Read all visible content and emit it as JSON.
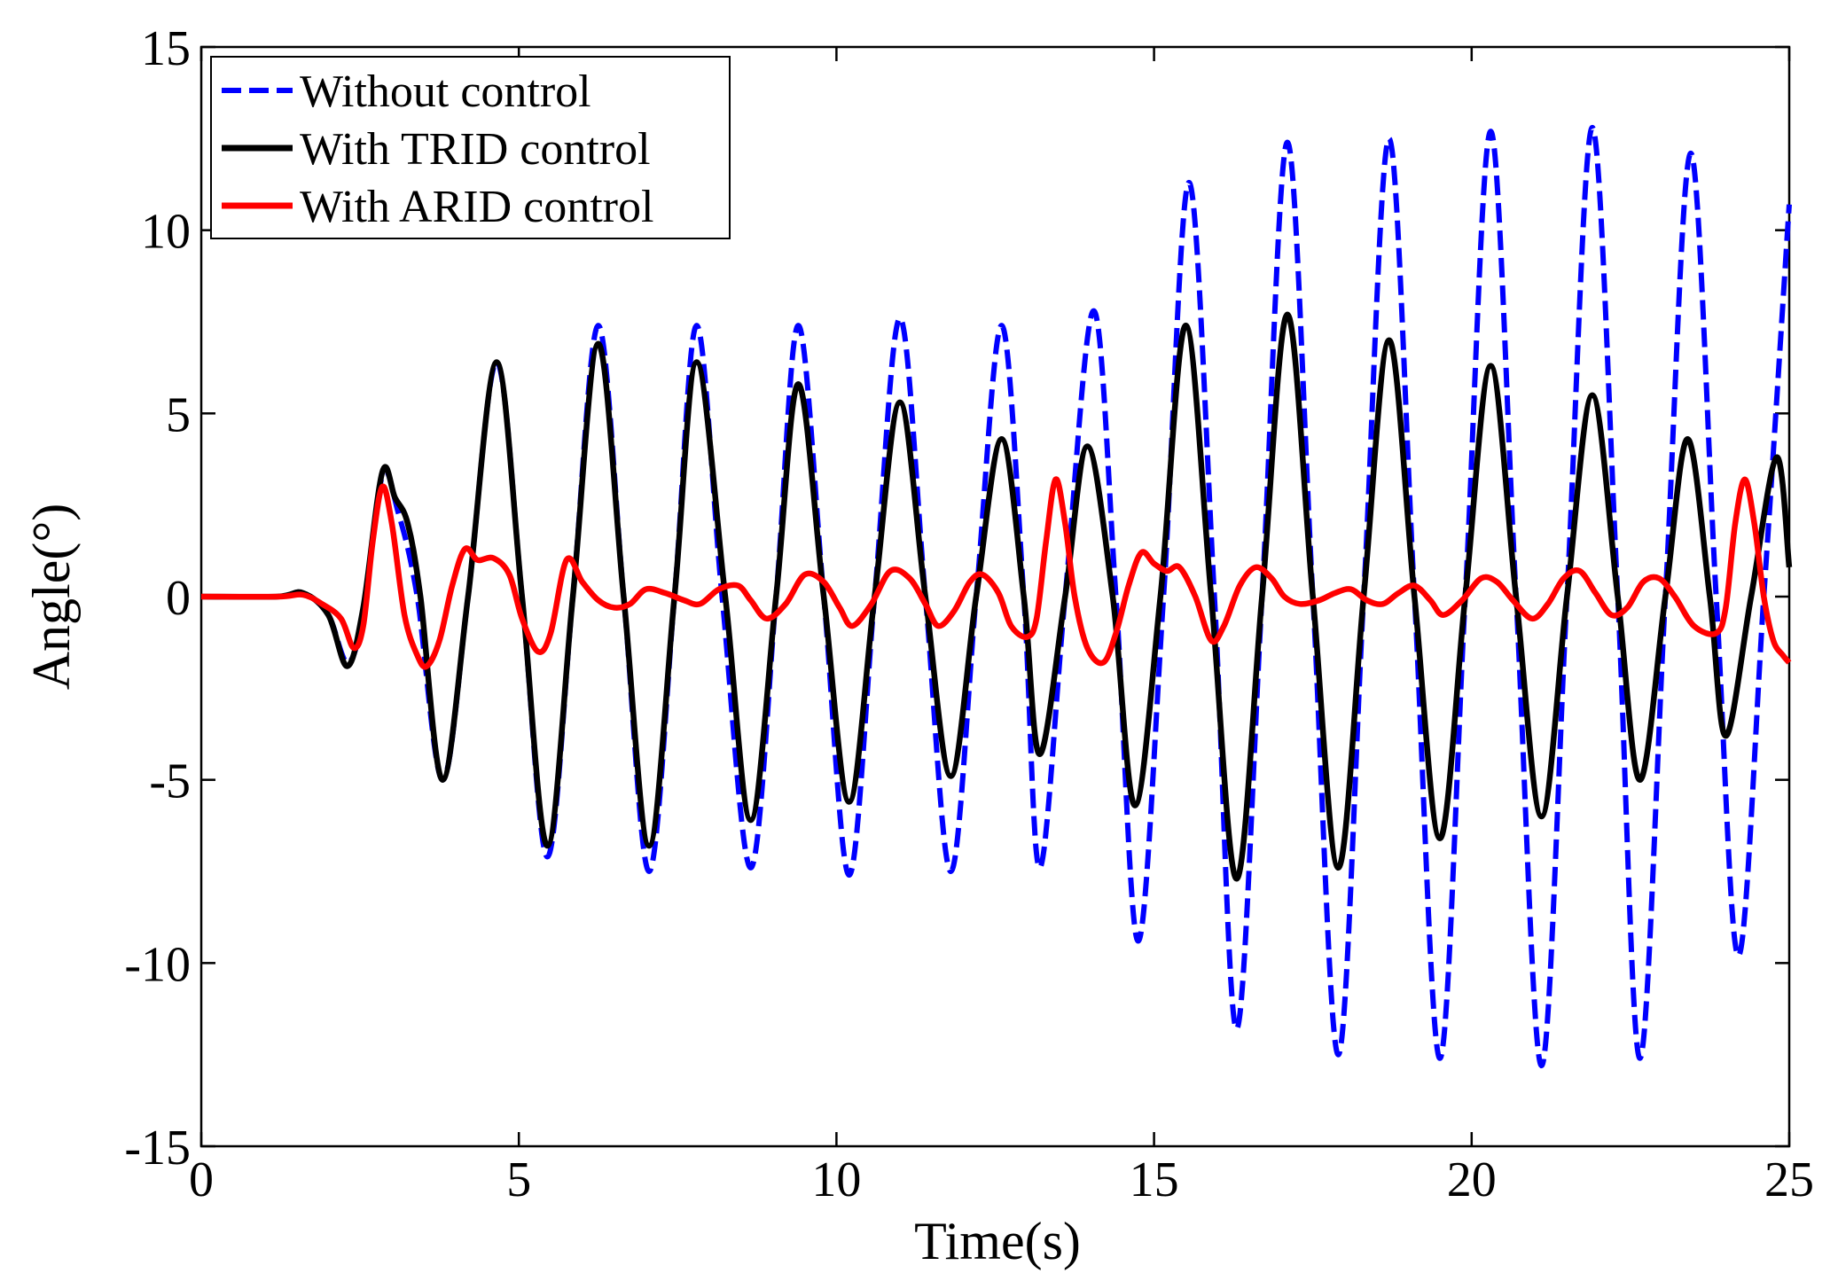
{
  "chart_data": {
    "type": "line",
    "title": "",
    "xlabel": "Time(s)",
    "ylabel": "Angle(°)",
    "xlim": [
      0,
      25
    ],
    "ylim": [
      -15,
      15
    ],
    "xticks": [
      0,
      5,
      10,
      15,
      20,
      25
    ],
    "yticks": [
      -15,
      -10,
      -5,
      0,
      5,
      10,
      15
    ],
    "xtick_labels": [
      "0",
      "5",
      "10",
      "15",
      "20",
      "25"
    ],
    "ytick_labels": [
      "-15",
      "-10",
      "-5",
      "0",
      "5",
      "10",
      "15"
    ],
    "grid": false,
    "legend_position": "top-left",
    "series": [
      {
        "name": "Without control",
        "color": "#0000ff",
        "style": "dashed",
        "points": [
          [
            0,
            0
          ],
          [
            1.2,
            0
          ],
          [
            1.6,
            0.1
          ],
          [
            2.0,
            -0.5
          ],
          [
            2.3,
            -1.8
          ],
          [
            2.55,
            -0.5
          ],
          [
            2.85,
            3.3
          ],
          [
            3.1,
            2.3
          ],
          [
            3.4,
            0
          ],
          [
            3.8,
            -5.0
          ],
          [
            4.2,
            0
          ],
          [
            4.65,
            6.4
          ],
          [
            5.05,
            0
          ],
          [
            5.45,
            -7.1
          ],
          [
            5.85,
            0
          ],
          [
            6.25,
            7.4
          ],
          [
            6.65,
            0
          ],
          [
            7.05,
            -7.5
          ],
          [
            7.45,
            0
          ],
          [
            7.8,
            7.4
          ],
          [
            8.2,
            0
          ],
          [
            8.65,
            -7.4
          ],
          [
            9.05,
            0
          ],
          [
            9.4,
            7.4
          ],
          [
            9.8,
            0
          ],
          [
            10.2,
            -7.6
          ],
          [
            10.6,
            0
          ],
          [
            11.0,
            7.6
          ],
          [
            11.4,
            0
          ],
          [
            11.8,
            -7.5
          ],
          [
            12.2,
            0
          ],
          [
            12.6,
            7.4
          ],
          [
            12.95,
            0
          ],
          [
            13.2,
            -7.4
          ],
          [
            13.6,
            0
          ],
          [
            14.05,
            7.8
          ],
          [
            14.4,
            0
          ],
          [
            14.75,
            -9.4
          ],
          [
            15.15,
            0
          ],
          [
            15.55,
            11.3
          ],
          [
            15.95,
            0
          ],
          [
            16.3,
            -11.8
          ],
          [
            16.7,
            0
          ],
          [
            17.1,
            12.4
          ],
          [
            17.5,
            0
          ],
          [
            17.9,
            -12.5
          ],
          [
            18.3,
            0
          ],
          [
            18.7,
            12.5
          ],
          [
            19.1,
            0
          ],
          [
            19.5,
            -12.6
          ],
          [
            19.9,
            0
          ],
          [
            20.3,
            12.7
          ],
          [
            20.7,
            0
          ],
          [
            21.1,
            -12.8
          ],
          [
            21.5,
            0
          ],
          [
            21.9,
            12.8
          ],
          [
            22.3,
            0
          ],
          [
            22.65,
            -12.6
          ],
          [
            23.05,
            0
          ],
          [
            23.45,
            12.1
          ],
          [
            23.85,
            0
          ],
          [
            24.2,
            -9.8
          ],
          [
            24.6,
            0
          ],
          [
            25.0,
            10.7
          ]
        ]
      },
      {
        "name": "With TRID control",
        "color": "#000000",
        "style": "solid",
        "points": [
          [
            0,
            0
          ],
          [
            1.2,
            0
          ],
          [
            1.6,
            0.1
          ],
          [
            2.0,
            -0.5
          ],
          [
            2.3,
            -1.9
          ],
          [
            2.55,
            -0.3
          ],
          [
            2.85,
            3.4
          ],
          [
            3.05,
            2.7
          ],
          [
            3.25,
            2.0
          ],
          [
            3.45,
            0
          ],
          [
            3.8,
            -5.0
          ],
          [
            4.2,
            0
          ],
          [
            4.65,
            6.4
          ],
          [
            5.05,
            0
          ],
          [
            5.45,
            -6.8
          ],
          [
            5.85,
            0
          ],
          [
            6.25,
            6.9
          ],
          [
            6.65,
            0
          ],
          [
            7.05,
            -6.8
          ],
          [
            7.45,
            0
          ],
          [
            7.8,
            6.4
          ],
          [
            8.25,
            0
          ],
          [
            8.65,
            -6.1
          ],
          [
            9.05,
            0
          ],
          [
            9.4,
            5.8
          ],
          [
            9.8,
            0
          ],
          [
            10.2,
            -5.6
          ],
          [
            10.6,
            0
          ],
          [
            11.0,
            5.3
          ],
          [
            11.4,
            0
          ],
          [
            11.8,
            -4.9
          ],
          [
            12.2,
            0
          ],
          [
            12.6,
            4.3
          ],
          [
            12.95,
            0
          ],
          [
            13.2,
            -4.3
          ],
          [
            13.6,
            0
          ],
          [
            13.95,
            4.1
          ],
          [
            14.35,
            0
          ],
          [
            14.7,
            -5.7
          ],
          [
            15.1,
            0
          ],
          [
            15.5,
            7.4
          ],
          [
            15.9,
            0
          ],
          [
            16.3,
            -7.7
          ],
          [
            16.7,
            0
          ],
          [
            17.1,
            7.7
          ],
          [
            17.5,
            0
          ],
          [
            17.9,
            -7.4
          ],
          [
            18.3,
            0
          ],
          [
            18.7,
            7.0
          ],
          [
            19.1,
            0
          ],
          [
            19.5,
            -6.6
          ],
          [
            19.9,
            0
          ],
          [
            20.3,
            6.3
          ],
          [
            20.7,
            0
          ],
          [
            21.1,
            -6.0
          ],
          [
            21.5,
            0
          ],
          [
            21.9,
            5.5
          ],
          [
            22.3,
            0
          ],
          [
            22.65,
            -5.0
          ],
          [
            23.05,
            0
          ],
          [
            23.4,
            4.3
          ],
          [
            23.75,
            0
          ],
          [
            24.0,
            -3.8
          ],
          [
            24.4,
            0
          ],
          [
            24.8,
            3.8
          ],
          [
            25.0,
            0.8
          ]
        ]
      },
      {
        "name": "With ARID control",
        "color": "#ff0000",
        "style": "solid",
        "points": [
          [
            0,
            0
          ],
          [
            1.2,
            0
          ],
          [
            1.6,
            0.05
          ],
          [
            1.9,
            -0.2
          ],
          [
            2.2,
            -0.6
          ],
          [
            2.4,
            -1.4
          ],
          [
            2.55,
            -0.8
          ],
          [
            2.7,
            1.5
          ],
          [
            2.85,
            3.0
          ],
          [
            3.0,
            2.0
          ],
          [
            3.2,
            -0.5
          ],
          [
            3.4,
            -1.6
          ],
          [
            3.55,
            -1.9
          ],
          [
            3.75,
            -1.2
          ],
          [
            3.95,
            0.3
          ],
          [
            4.15,
            1.3
          ],
          [
            4.35,
            1.0
          ],
          [
            4.6,
            1.05
          ],
          [
            4.85,
            0.6
          ],
          [
            5.05,
            -0.6
          ],
          [
            5.3,
            -1.5
          ],
          [
            5.5,
            -1.0
          ],
          [
            5.75,
            1.0
          ],
          [
            6.0,
            0.4
          ],
          [
            6.25,
            -0.1
          ],
          [
            6.5,
            -0.3
          ],
          [
            6.75,
            -0.2
          ],
          [
            7.0,
            0.2
          ],
          [
            7.3,
            0.1
          ],
          [
            7.6,
            -0.1
          ],
          [
            7.85,
            -0.2
          ],
          [
            8.15,
            0.2
          ],
          [
            8.45,
            0.3
          ],
          [
            8.65,
            -0.1
          ],
          [
            8.9,
            -0.6
          ],
          [
            9.2,
            -0.2
          ],
          [
            9.5,
            0.6
          ],
          [
            9.8,
            0.4
          ],
          [
            10.05,
            -0.3
          ],
          [
            10.25,
            -0.8
          ],
          [
            10.55,
            -0.2
          ],
          [
            10.85,
            0.7
          ],
          [
            11.15,
            0.5
          ],
          [
            11.4,
            -0.2
          ],
          [
            11.6,
            -0.8
          ],
          [
            11.85,
            -0.4
          ],
          [
            12.1,
            0.4
          ],
          [
            12.3,
            0.6
          ],
          [
            12.55,
            0.1
          ],
          [
            12.75,
            -0.8
          ],
          [
            13.0,
            -1.1
          ],
          [
            13.15,
            -0.6
          ],
          [
            13.3,
            1.5
          ],
          [
            13.45,
            3.2
          ],
          [
            13.6,
            2.0
          ],
          [
            13.75,
            0
          ],
          [
            13.95,
            -1.4
          ],
          [
            14.2,
            -1.8
          ],
          [
            14.4,
            -1.0
          ],
          [
            14.6,
            0.3
          ],
          [
            14.8,
            1.2
          ],
          [
            15.0,
            0.9
          ],
          [
            15.2,
            0.7
          ],
          [
            15.4,
            0.8
          ],
          [
            15.65,
            0
          ],
          [
            15.9,
            -1.2
          ],
          [
            16.1,
            -0.8
          ],
          [
            16.35,
            0.3
          ],
          [
            16.6,
            0.8
          ],
          [
            16.85,
            0.5
          ],
          [
            17.05,
            0
          ],
          [
            17.3,
            -0.2
          ],
          [
            17.6,
            -0.1
          ],
          [
            17.85,
            0.1
          ],
          [
            18.1,
            0.2
          ],
          [
            18.35,
            -0.1
          ],
          [
            18.6,
            -0.2
          ],
          [
            18.85,
            0.1
          ],
          [
            19.1,
            0.3
          ],
          [
            19.35,
            -0.1
          ],
          [
            19.55,
            -0.5
          ],
          [
            19.85,
            -0.1
          ],
          [
            20.15,
            0.5
          ],
          [
            20.4,
            0.4
          ],
          [
            20.65,
            -0.1
          ],
          [
            20.95,
            -0.6
          ],
          [
            21.2,
            -0.2
          ],
          [
            21.45,
            0.5
          ],
          [
            21.7,
            0.7
          ],
          [
            21.95,
            0.1
          ],
          [
            22.2,
            -0.5
          ],
          [
            22.45,
            -0.3
          ],
          [
            22.7,
            0.4
          ],
          [
            22.95,
            0.5
          ],
          [
            23.2,
            0
          ],
          [
            23.5,
            -0.8
          ],
          [
            23.85,
            -1.0
          ],
          [
            24.0,
            -0.3
          ],
          [
            24.15,
            2.0
          ],
          [
            24.3,
            3.2
          ],
          [
            24.45,
            2.0
          ],
          [
            24.6,
            0
          ],
          [
            24.75,
            -1.2
          ],
          [
            24.9,
            -1.6
          ],
          [
            25.0,
            -1.8
          ]
        ]
      }
    ]
  }
}
